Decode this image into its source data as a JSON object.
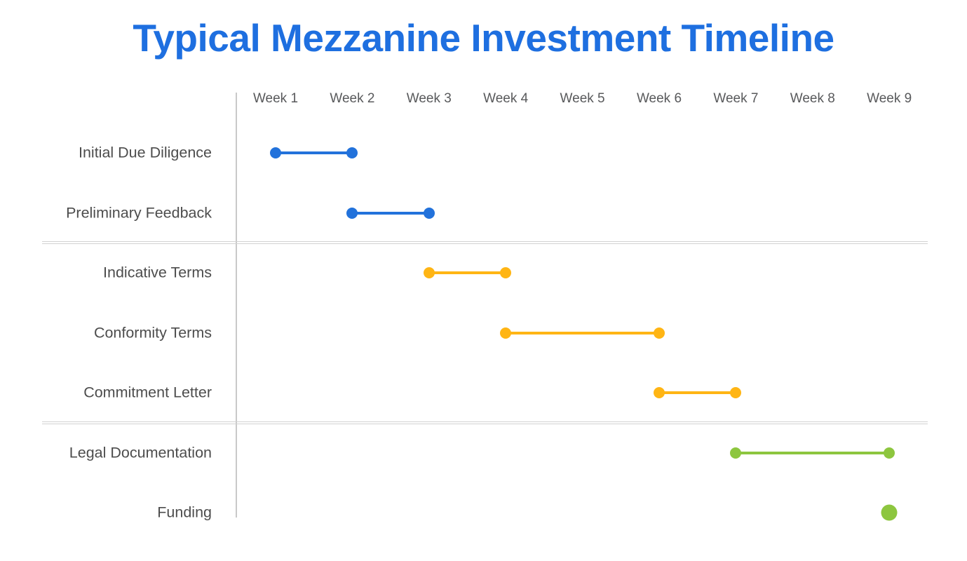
{
  "header": {
    "title": "Typical Mezzanine Investment Timeline",
    "title_color": "#1E6FE0"
  },
  "chart_data": {
    "type": "gantt",
    "title": "Typical Mezzanine Investment Timeline",
    "x_unit": "week",
    "x_labels": [
      "Week 1",
      "Week 2",
      "Week 3",
      "Week 4",
      "Week 5",
      "Week 6",
      "Week 7",
      "Week 8",
      "Week 9"
    ],
    "x_range": [
      1,
      9
    ],
    "grid": "none",
    "legend": "none",
    "rows": [
      {
        "label": "Initial Due Diligence",
        "start_week": 1,
        "end_week": 2,
        "color": "#2272DB",
        "style": "bar"
      },
      {
        "label": "Preliminary Feedback",
        "start_week": 2,
        "end_week": 3,
        "color": "#2272DB",
        "style": "bar"
      },
      {
        "label": "Indicative Terms",
        "start_week": 3,
        "end_week": 4,
        "color": "#FFB514",
        "style": "bar"
      },
      {
        "label": "Conformity Terms",
        "start_week": 4,
        "end_week": 6,
        "color": "#FFB514",
        "style": "bar"
      },
      {
        "label": "Commitment Letter",
        "start_week": 6,
        "end_week": 7,
        "color": "#FFB514",
        "style": "bar"
      },
      {
        "label": "Legal Documentation",
        "start_week": 7,
        "end_week": 9,
        "color": "#8DC63F",
        "style": "bar"
      },
      {
        "label": "Funding",
        "start_week": 9,
        "end_week": 9,
        "color": "#8DC63F",
        "style": "milestone"
      }
    ],
    "group_dividers_after_rows": [
      2,
      5
    ],
    "colors": {
      "phase_early": "#2272DB",
      "phase_terms": "#FFB514",
      "phase_closing": "#8DC63F",
      "axis_line": "#C9C9C9",
      "divider_line": "#D2D2D2",
      "row_label_text": "#4D4D4D",
      "axis_label_text": "#58595B"
    }
  }
}
